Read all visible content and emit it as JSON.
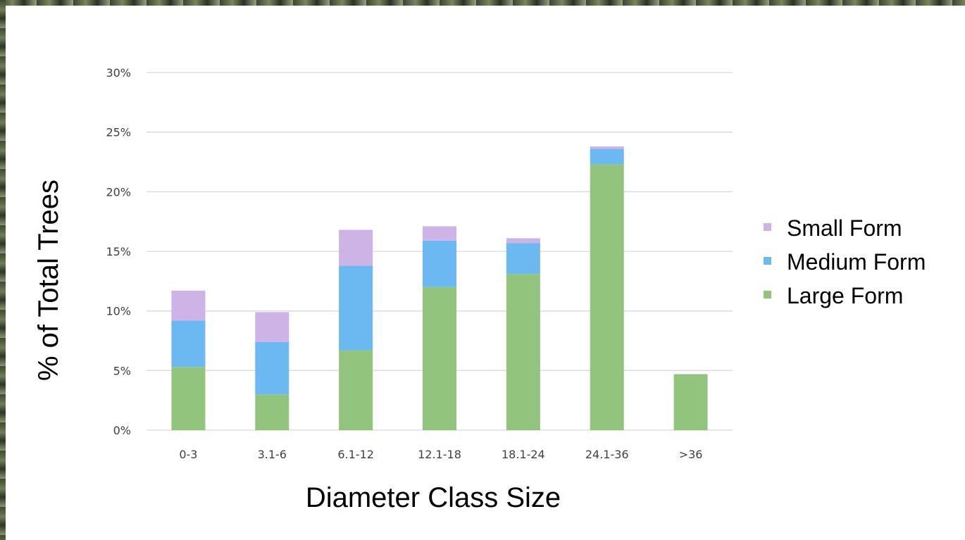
{
  "chart_data": {
    "type": "bar",
    "stacked": true,
    "categories": [
      "0-3",
      "3.1-6",
      "6.1-12",
      "12.1-18",
      "18.1-24",
      "24.1-36",
      ">36"
    ],
    "series": [
      {
        "name": "Large Form",
        "color": "#93c47d",
        "values": [
          5.3,
          3.0,
          6.7,
          12.0,
          13.1,
          22.3,
          4.7
        ]
      },
      {
        "name": "Medium Form",
        "color": "#6cb8f0",
        "values": [
          3.9,
          4.4,
          7.1,
          3.9,
          2.6,
          1.3,
          0
        ]
      },
      {
        "name": "Small Form",
        "color": "#cdb3e6",
        "values": [
          2.5,
          2.5,
          3.0,
          1.2,
          0.4,
          0.2,
          0
        ]
      }
    ],
    "legend_order": [
      "Small Form",
      "Medium Form",
      "Large Form"
    ],
    "legend_position": "right",
    "xlabel": "Diameter Class Size",
    "ylabel": "% of Total Trees",
    "ylim": [
      0,
      30
    ],
    "yticks": [
      "0%",
      "5%",
      "10%",
      "15%",
      "20%",
      "25%",
      "30%"
    ],
    "grid": true,
    "gridline_color": "#d9d9d9"
  }
}
